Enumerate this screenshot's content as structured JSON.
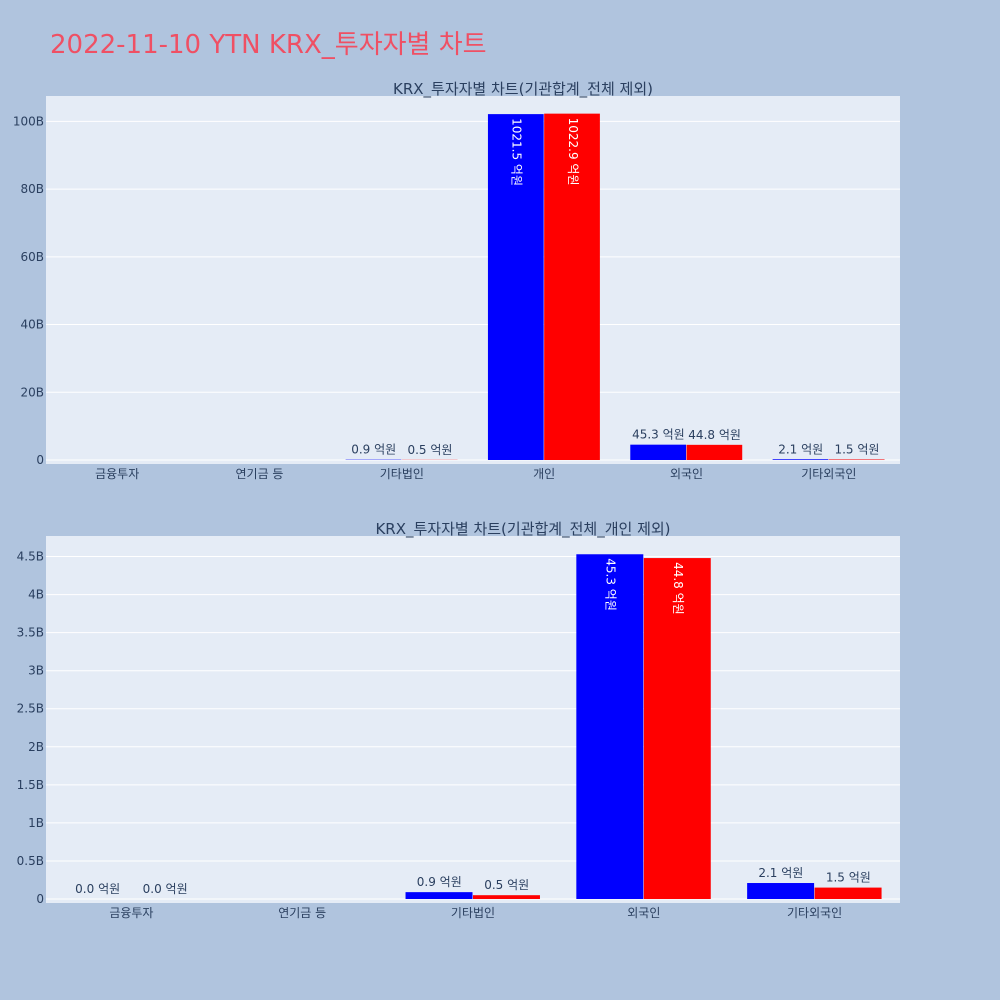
{
  "page_title": "2022-11-10 YTN KRX_투자자별 차트",
  "colors": {
    "background": "#b0c4de",
    "plot_bg": "#e5ecf6",
    "title": "#ef5064",
    "series_a": "#0000ff",
    "series_b": "#ff0000",
    "text": "#2a3f5f"
  },
  "chart_data": [
    {
      "type": "bar",
      "title": "KRX_투자자별 차트(기관합계_전체 제외)",
      "categories": [
        "금융투자",
        "연기금 등",
        "기타법인",
        "개인",
        "외국인",
        "기타외국인"
      ],
      "series": [
        {
          "color": "#0000ff",
          "values": [
            0,
            0,
            90000000,
            102150000000,
            4530000000,
            210000000
          ],
          "labels": [
            "",
            "",
            "0.9 억원",
            "1021.5 억원",
            "45.3 억원",
            "2.1 억원"
          ]
        },
        {
          "color": "#ff0000",
          "values": [
            0,
            0,
            50000000,
            102290000000,
            4480000000,
            150000000
          ],
          "labels": [
            "",
            "",
            "0.5 억원",
            "1022.9 억원",
            "44.8 억원",
            "1.5 억원"
          ]
        }
      ],
      "yticks": [
        0,
        20000000000,
        40000000000,
        60000000000,
        80000000000,
        100000000000
      ],
      "ytick_labels": [
        "0",
        "20B",
        "40B",
        "60B",
        "80B",
        "100B"
      ],
      "ylim": [
        0,
        107500000000
      ],
      "grid": true
    },
    {
      "type": "bar",
      "title": "KRX_투자자별 차트(기관합계_전체_개인 제외)",
      "categories": [
        "금융투자",
        "연기금 등",
        "기타법인",
        "외국인",
        "기타외국인"
      ],
      "series": [
        {
          "color": "#0000ff",
          "values": [
            0,
            0,
            90000000,
            4530000000,
            210000000
          ],
          "labels": [
            "0.0 억원",
            "",
            "0.9 억원",
            "45.3 억원",
            "2.1 억원"
          ]
        },
        {
          "color": "#ff0000",
          "values": [
            0,
            0,
            50000000,
            4480000000,
            150000000
          ],
          "labels": [
            "0.0 억원",
            "",
            "0.5 억원",
            "44.8 억원",
            "1.5 억원"
          ]
        }
      ],
      "yticks": [
        0,
        500000000,
        1000000000,
        1500000000,
        2000000000,
        2500000000,
        3000000000,
        3500000000,
        4000000000,
        4500000000
      ],
      "ytick_labels": [
        "0",
        "0.5B",
        "1B",
        "1.5B",
        "2B",
        "2.5B",
        "3B",
        "3.5B",
        "4B",
        "4.5B"
      ],
      "ylim": [
        0,
        4770000000
      ],
      "grid": true
    }
  ]
}
